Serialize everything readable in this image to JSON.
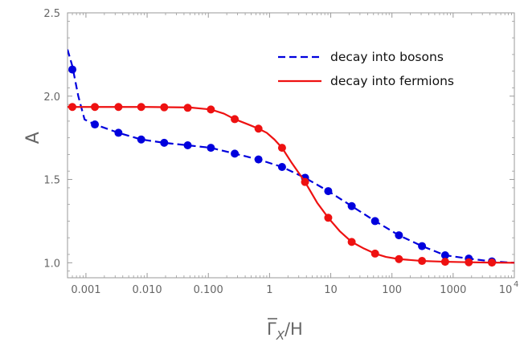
{
  "chart_data": {
    "type": "line",
    "xscale": "log",
    "xlim": [
      0.0005,
      10000
    ],
    "ylim": [
      0.91,
      2.5
    ],
    "xlabel": "Γ̄X/H",
    "ylabel": "A",
    "xlabel_parts": {
      "gamma": "Γ",
      "sub": "X",
      "rest": "/H"
    },
    "x_ticks": [
      {
        "value": 0.001,
        "label": "0.001"
      },
      {
        "value": 0.01,
        "label": "0.010"
      },
      {
        "value": 0.1,
        "label": "0.100"
      },
      {
        "value": 1,
        "label": "1"
      },
      {
        "value": 10,
        "label": "10"
      },
      {
        "value": 100,
        "label": "100"
      },
      {
        "value": 1000,
        "label": "1000"
      }
    ],
    "x_last_tick": {
      "value": 10000,
      "base": "10",
      "exp": "4"
    },
    "y_ticks": [
      {
        "value": 1.0,
        "label": "1.0"
      },
      {
        "value": 1.5,
        "label": "1.5"
      },
      {
        "value": 2.0,
        "label": "2.0"
      },
      {
        "value": 2.5,
        "label": "2.5"
      }
    ],
    "legend_position": "top-right",
    "grid": false,
    "series": [
      {
        "name": "decay into bosons",
        "color": "#0000dd",
        "line_style": "dashed",
        "line": [
          [
            0.0005,
            2.28
          ],
          [
            0.0006,
            2.18
          ],
          [
            0.00075,
            2.0
          ],
          [
            0.00095,
            1.86
          ],
          [
            0.0014,
            1.83
          ],
          [
            0.0034,
            1.78
          ],
          [
            0.008,
            1.74
          ],
          [
            0.019,
            1.72
          ],
          [
            0.046,
            1.705
          ],
          [
            0.11,
            1.69
          ],
          [
            0.27,
            1.655
          ],
          [
            0.66,
            1.62
          ],
          [
            1.6,
            1.575
          ],
          [
            3.8,
            1.51
          ],
          [
            9.1,
            1.43
          ],
          [
            22,
            1.34
          ],
          [
            53,
            1.25
          ],
          [
            130,
            1.165
          ],
          [
            310,
            1.1
          ],
          [
            740,
            1.045
          ],
          [
            1800,
            1.025
          ],
          [
            4300,
            1.008
          ],
          [
            10000,
            1.0
          ]
        ],
        "points": [
          [
            0.0006,
            2.16
          ],
          [
            0.0014,
            1.83
          ],
          [
            0.0034,
            1.78
          ],
          [
            0.008,
            1.74
          ],
          [
            0.019,
            1.72
          ],
          [
            0.046,
            1.705
          ],
          [
            0.11,
            1.69
          ],
          [
            0.27,
            1.655
          ],
          [
            0.66,
            1.62
          ],
          [
            1.6,
            1.575
          ],
          [
            3.8,
            1.51
          ],
          [
            9.1,
            1.43
          ],
          [
            22,
            1.34
          ],
          [
            53,
            1.25
          ],
          [
            130,
            1.165
          ],
          [
            310,
            1.1
          ],
          [
            740,
            1.045
          ],
          [
            1800,
            1.025
          ],
          [
            4300,
            1.008
          ]
        ]
      },
      {
        "name": "decay into fermions",
        "color": "#ee1111",
        "line_style": "solid",
        "line": [
          [
            0.0005,
            1.935
          ],
          [
            0.001,
            1.935
          ],
          [
            0.01,
            1.935
          ],
          [
            0.05,
            1.932
          ],
          [
            0.11,
            1.92
          ],
          [
            0.18,
            1.895
          ],
          [
            0.27,
            1.862
          ],
          [
            0.45,
            1.83
          ],
          [
            0.66,
            1.805
          ],
          [
            0.9,
            1.78
          ],
          [
            1.2,
            1.74
          ],
          [
            1.6,
            1.69
          ],
          [
            2.3,
            1.6
          ],
          [
            3.8,
            1.485
          ],
          [
            6,
            1.36
          ],
          [
            9.1,
            1.27
          ],
          [
            14,
            1.19
          ],
          [
            22,
            1.125
          ],
          [
            35,
            1.085
          ],
          [
            53,
            1.055
          ],
          [
            80,
            1.035
          ],
          [
            130,
            1.022
          ],
          [
            310,
            1.011
          ],
          [
            740,
            1.006
          ],
          [
            1800,
            1.003
          ],
          [
            4300,
            1.001
          ],
          [
            10000,
            1.0
          ]
        ],
        "points": [
          [
            0.0006,
            1.935
          ],
          [
            0.0014,
            1.935
          ],
          [
            0.0034,
            1.935
          ],
          [
            0.008,
            1.935
          ],
          [
            0.019,
            1.933
          ],
          [
            0.046,
            1.93
          ],
          [
            0.11,
            1.92
          ],
          [
            0.27,
            1.862
          ],
          [
            0.66,
            1.805
          ],
          [
            1.6,
            1.69
          ],
          [
            3.8,
            1.485
          ],
          [
            9.1,
            1.27
          ],
          [
            22,
            1.125
          ],
          [
            53,
            1.055
          ],
          [
            130,
            1.022
          ],
          [
            310,
            1.011
          ],
          [
            740,
            1.006
          ],
          [
            1800,
            1.003
          ],
          [
            4300,
            1.001
          ]
        ]
      }
    ]
  }
}
